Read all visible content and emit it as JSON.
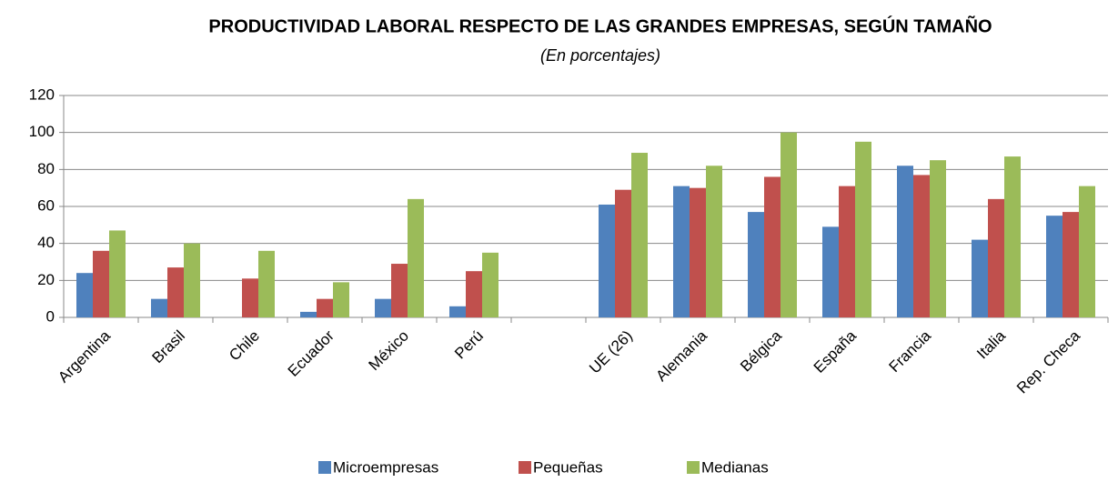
{
  "chart_data": {
    "type": "bar",
    "title": "PRODUCTIVIDAD LABORAL RESPECTO DE LAS GRANDES EMPRESAS, SEGÚN TAMAÑO",
    "subtitle": "(En porcentajes)",
    "categories": [
      "Argentina",
      "Brasil",
      "Chile",
      "Ecuador",
      "México",
      "Perú",
      null,
      "UE (26)",
      "Alemania",
      "Bélgica",
      "España",
      "Francia",
      "Italia",
      "Rep. Checa"
    ],
    "series": [
      {
        "name": "Microempresas",
        "color": "#4f81bd",
        "values": [
          24,
          10,
          null,
          3,
          10,
          6,
          null,
          61,
          71,
          57,
          49,
          82,
          42,
          55
        ]
      },
      {
        "name": "Pequeñas",
        "color": "#c0504d",
        "values": [
          36,
          27,
          21,
          10,
          29,
          25,
          null,
          69,
          70,
          76,
          71,
          77,
          64,
          57
        ]
      },
      {
        "name": "Medianas",
        "color": "#9bbb59",
        "values": [
          47,
          40,
          36,
          19,
          64,
          35,
          null,
          89,
          82,
          100,
          95,
          85,
          87,
          71
        ]
      }
    ],
    "ylim": [
      0,
      120
    ],
    "yticks": [
      0,
      20,
      40,
      60,
      80,
      100,
      120
    ],
    "grid": true,
    "legend": "bottom"
  }
}
